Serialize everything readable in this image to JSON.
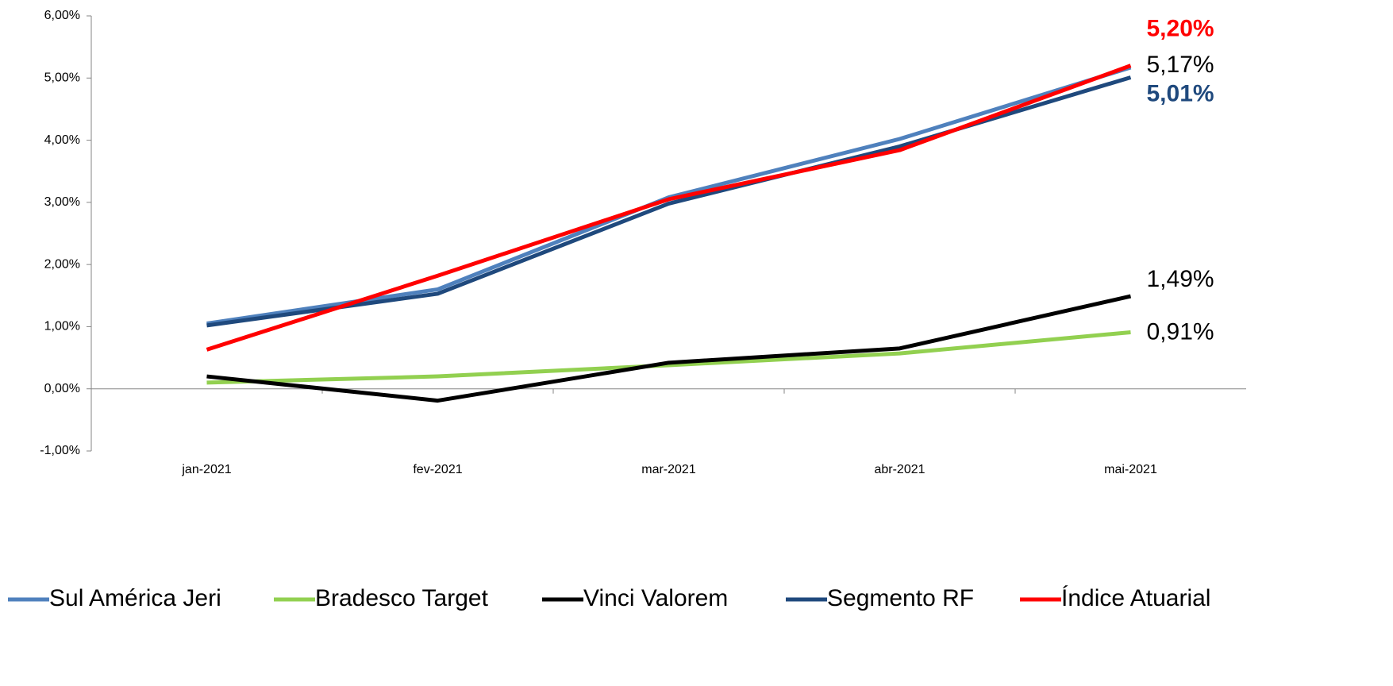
{
  "chart_data": {
    "type": "line",
    "categories": [
      "jan-2021",
      "fev-2021",
      "mar-2021",
      "abr-2021",
      "mai-2021"
    ],
    "ylim": [
      -1,
      6
    ],
    "yticks": [
      {
        "value": -1,
        "label": "-1,00%"
      },
      {
        "value": 0,
        "label": "0,00%"
      },
      {
        "value": 1,
        "label": "1,00%"
      },
      {
        "value": 2,
        "label": "2,00%"
      },
      {
        "value": 3,
        "label": "3,00%"
      },
      {
        "value": 4,
        "label": "4,00%"
      },
      {
        "value": 5,
        "label": "5,00%"
      },
      {
        "value": 6,
        "label": "6,00%"
      }
    ],
    "grid": false,
    "legend": "bottom",
    "series": [
      {
        "name": "Sul América Jeri",
        "color": "#4f81bd",
        "values": [
          1.05,
          1.6,
          3.08,
          4.02,
          5.17
        ],
        "value_labels": [
          null,
          null,
          null,
          null,
          "5,17%"
        ]
      },
      {
        "name": "Bradesco Target",
        "color": "#92d050",
        "values": [
          0.1,
          0.2,
          0.38,
          0.57,
          0.91
        ],
        "value_labels": [
          null,
          null,
          null,
          null,
          "0,91%"
        ]
      },
      {
        "name": "Vinci Valorem",
        "color": "#000000",
        "values": [
          0.2,
          -0.19,
          0.42,
          0.65,
          1.49
        ],
        "value_labels": [
          null,
          null,
          null,
          null,
          "1,49%"
        ]
      },
      {
        "name": "Segmento RF",
        "color": "#1f497d",
        "values": [
          1.02,
          1.53,
          2.98,
          3.9,
          5.01
        ],
        "value_labels": [
          null,
          null,
          null,
          null,
          "5,01%"
        ]
      },
      {
        "name": "Índice Atuarial",
        "color": "#ff0000",
        "values": [
          0.63,
          1.82,
          3.05,
          3.84,
          5.2
        ],
        "value_labels": [
          null,
          null,
          null,
          null,
          "5,20%"
        ]
      }
    ]
  }
}
